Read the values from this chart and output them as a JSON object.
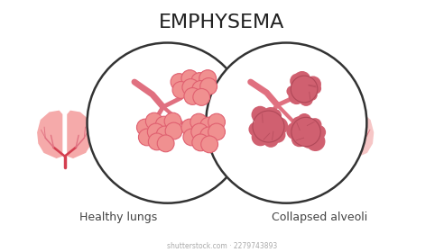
{
  "title": "EMPHYSEMA",
  "label_left": "Healthy lungs",
  "label_right": "Collapsed alveoli",
  "watermark": "shutterstock.com · 2279743893",
  "bg_color": "#ffffff",
  "title_fontsize": 16,
  "label_fontsize": 9,
  "lung_color_left": "#f5aaaa",
  "lung_color_right": "#f5c0c0",
  "airway_color_dark": "#d43f50",
  "airway_color_med": "#e07080",
  "alveoli_healthy_fill": "#f09090",
  "alveoli_healthy_edge": "#e06070",
  "alveoli_collapsed_fill": "#d06070",
  "alveoli_collapsed_edge": "#b04858",
  "circle_color": "#333333",
  "circle_lw": 1.8,
  "watermark_color": "#aaaaaa"
}
